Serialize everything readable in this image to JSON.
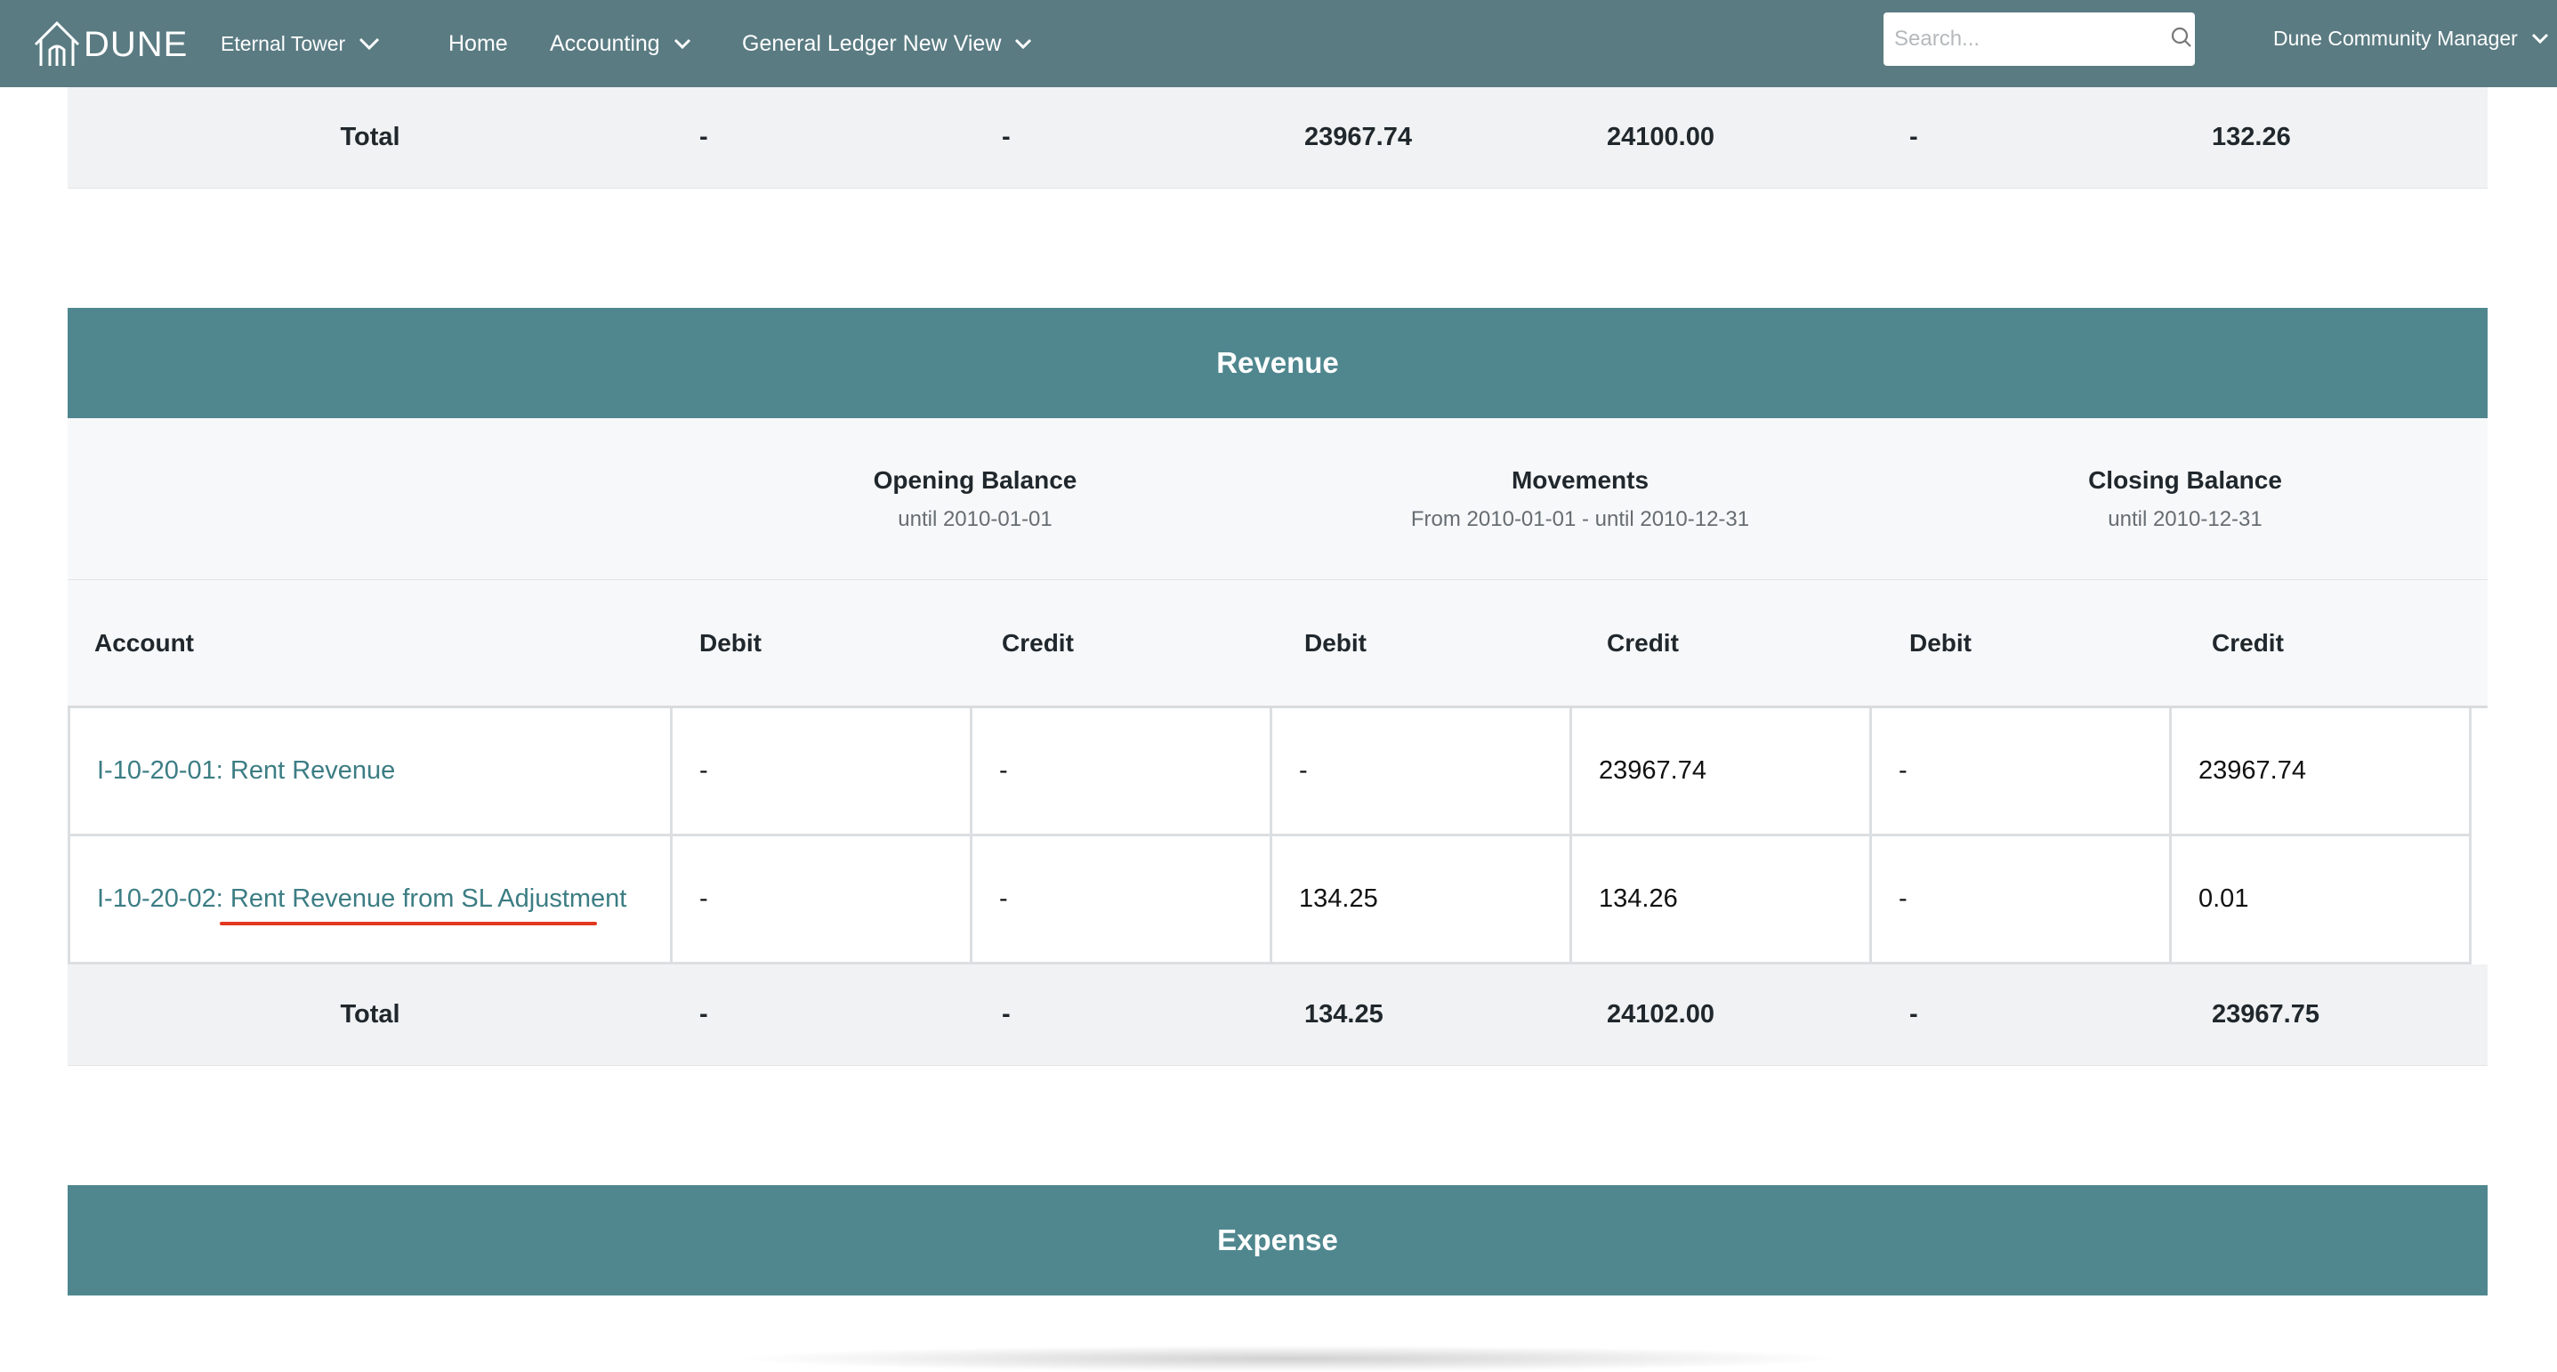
{
  "navbar": {
    "logo_text": "DUNE",
    "property_selector": "Eternal Tower",
    "home": "Home",
    "accounting": "Accounting",
    "view": "General Ledger New View",
    "search_placeholder": "Search...",
    "user": "Dune Community Manager"
  },
  "prev_section_total": {
    "label": "Total",
    "values": [
      "-",
      "-",
      "23967.74",
      "24100.00",
      "-",
      "132.26"
    ]
  },
  "revenue": {
    "title": "Revenue",
    "periods": [
      {
        "title": "Opening Balance",
        "sub": "until 2010-01-01"
      },
      {
        "title": "Movements",
        "sub": "From 2010-01-01 - until 2010-12-31"
      },
      {
        "title": "Closing Balance",
        "sub": "until 2010-12-31"
      }
    ],
    "columns": [
      "Account",
      "Debit",
      "Credit",
      "Debit",
      "Credit",
      "Debit",
      "Credit"
    ],
    "rows": [
      {
        "account": "I-10-20-01: Rent Revenue",
        "values": [
          "-",
          "-",
          "-",
          "23967.74",
          "-",
          "23967.74"
        ]
      },
      {
        "account": "I-10-20-02: Rent Revenue from SL Adjustment",
        "values": [
          "-",
          "-",
          "134.25",
          "134.26",
          "-",
          "0.01"
        ]
      }
    ],
    "total": {
      "label": "Total",
      "values": [
        "-",
        "-",
        "134.25",
        "24102.00",
        "-",
        "23967.75"
      ]
    }
  },
  "expense": {
    "title": "Expense"
  },
  "colors": {
    "navbar": "#5a7b82",
    "section_header": "#50878f",
    "link": "#3c7d84",
    "annotation_underline": "#e2381f"
  }
}
